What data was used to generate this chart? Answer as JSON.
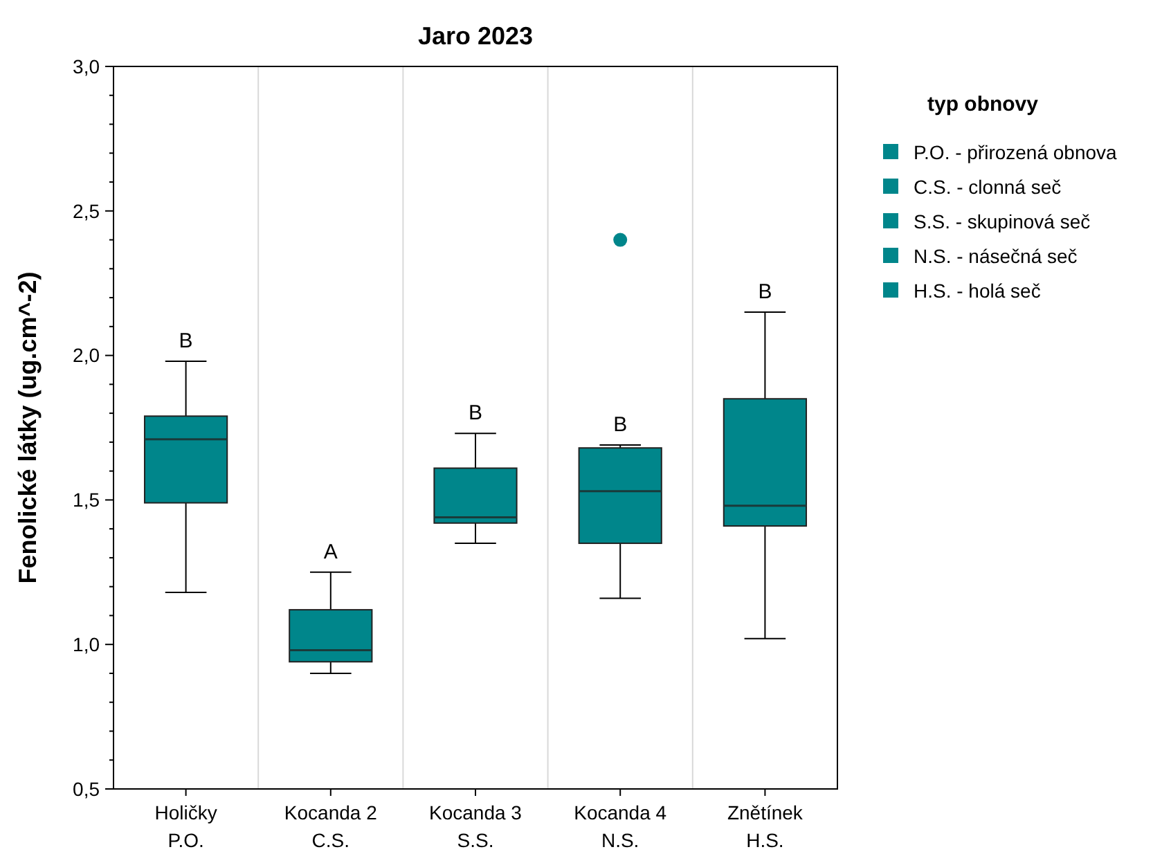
{
  "chart_data": {
    "type": "box",
    "title": "Jaro 2023",
    "ylabel": "Fenolické látky (ug.cm^-2)",
    "legend_title": "typ obnovy",
    "categories": [
      "Holičky\nP.O.",
      "Kocanda 2\nC.S.",
      "Kocanda 3\nS.S.",
      "Kocanda 4\nN.S.",
      "Znětínek\nH.S."
    ],
    "series": [
      {
        "name": "P.O. - přirozená obnova",
        "color": "#00868b",
        "boxes": [
          {
            "low": 1.18,
            "q1": 1.49,
            "median": 1.71,
            "q3": 1.79,
            "high": 1.98
          },
          null,
          null,
          null,
          null
        ]
      },
      {
        "name": "C.S. - clonná seč",
        "color": "#00868b",
        "boxes": [
          null,
          {
            "low": 0.9,
            "q1": 0.94,
            "median": 0.98,
            "q3": 1.12,
            "high": 1.25
          },
          null,
          null,
          null
        ]
      },
      {
        "name": "S.S. - skupinová seč",
        "color": "#00868b",
        "boxes": [
          null,
          null,
          {
            "low": 1.35,
            "q1": 1.42,
            "median": 1.44,
            "q3": 1.61,
            "high": 1.73
          },
          null,
          null
        ]
      },
      {
        "name": "N.S. - násečná seč",
        "color": "#00868b",
        "boxes": [
          null,
          null,
          null,
          {
            "low": 1.16,
            "q1": 1.35,
            "median": 1.53,
            "q3": 1.68,
            "high": 1.69,
            "outliers": [
              2.4
            ]
          },
          null
        ]
      },
      {
        "name": "H.S. - holá seč",
        "color": "#00868b",
        "boxes": [
          null,
          null,
          null,
          null,
          {
            "low": 1.02,
            "q1": 1.41,
            "median": 1.48,
            "q3": 1.85,
            "high": 2.15
          }
        ]
      }
    ],
    "ylim": [
      0.5,
      3.0
    ],
    "yticks": [
      {
        "value": 0.5,
        "label": "0,5"
      },
      {
        "value": 0.6,
        "label": null
      },
      {
        "value": 0.7,
        "label": null
      },
      {
        "value": 0.8,
        "label": null
      },
      {
        "value": 0.9,
        "label": null
      },
      {
        "value": 1.0,
        "label": "1,0"
      },
      {
        "value": 1.1,
        "label": null
      },
      {
        "value": 1.2,
        "label": null
      },
      {
        "value": 1.3,
        "label": null
      },
      {
        "value": 1.4,
        "label": null
      },
      {
        "value": 1.5,
        "label": "1,5"
      },
      {
        "value": 1.6,
        "label": null
      },
      {
        "value": 1.7,
        "label": null
      },
      {
        "value": 1.8,
        "label": null
      },
      {
        "value": 1.9,
        "label": null
      },
      {
        "value": 2.0,
        "label": "2,0"
      },
      {
        "value": 2.1,
        "label": null
      },
      {
        "value": 2.2,
        "label": null
      },
      {
        "value": 2.3,
        "label": null
      },
      {
        "value": 2.4,
        "label": null
      },
      {
        "value": 2.5,
        "label": "2,5"
      },
      {
        "value": 2.6,
        "label": null
      },
      {
        "value": 2.7,
        "label": null
      },
      {
        "value": 2.8,
        "label": null
      },
      {
        "value": 2.9,
        "label": null
      },
      {
        "value": 3.0,
        "label": "3,0"
      }
    ],
    "annotations": [
      "B",
      "A",
      "B",
      "B",
      "B"
    ],
    "grid": "x",
    "legend": "top right"
  }
}
